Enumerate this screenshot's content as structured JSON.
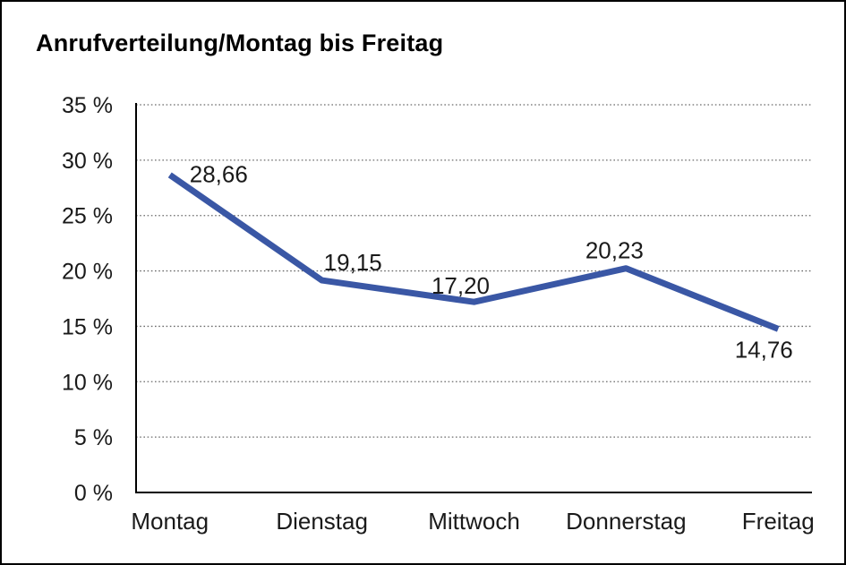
{
  "chart_data": {
    "type": "line",
    "title": "Anrufverteilung/Montag bis Freitag",
    "categories": [
      "Montag",
      "Dienstag",
      "Mittwoch",
      "Donnerstag",
      "Freitag"
    ],
    "values": [
      28.66,
      19.15,
      17.2,
      20.23,
      14.76
    ],
    "value_labels": [
      "28,66",
      "19,15",
      "17,20",
      "20,23",
      "14,76"
    ],
    "xlabel": "",
    "ylabel": "",
    "ylim": [
      0,
      35
    ],
    "ytick_step": 5,
    "ytick_labels": [
      "0 %",
      "5 %",
      "10 %",
      "15 %",
      "20 %",
      "25 %",
      "30 %",
      "35 %"
    ],
    "grid": "horizontal-dotted",
    "legend": "none",
    "line_color": "#3A57A5",
    "grid_color": "#6b6b6b",
    "axis_color": "#000000",
    "label_color": "#1a1a1a",
    "frame_border_color": "#000000",
    "background_color": "#ffffff"
  }
}
